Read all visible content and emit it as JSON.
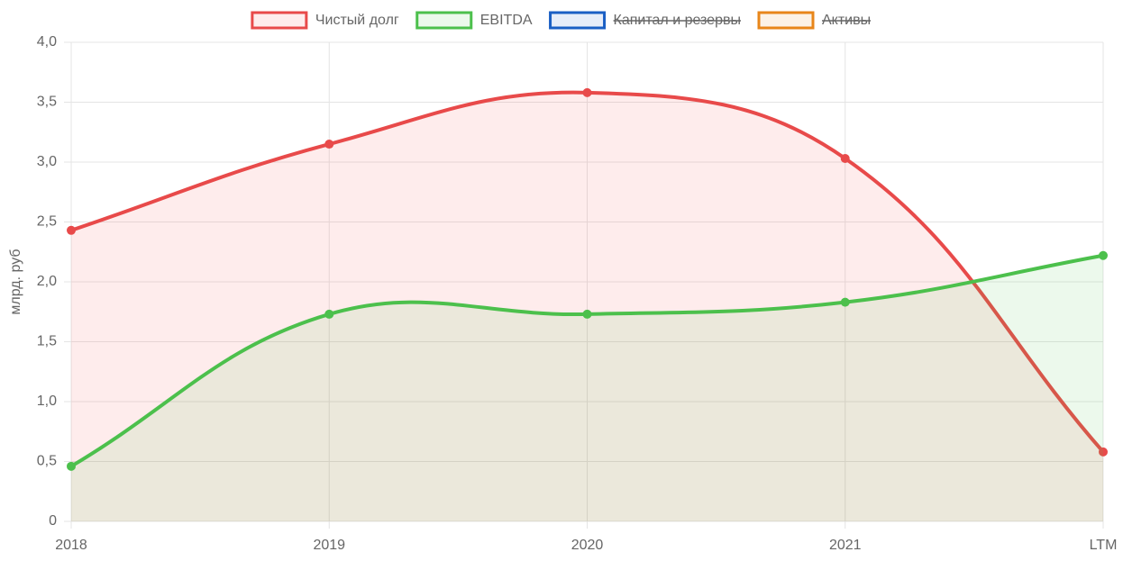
{
  "chart_data": {
    "type": "line",
    "y_label": "млрд. руб",
    "categories": [
      "2018",
      "2019",
      "2020",
      "2021",
      "LTM"
    ],
    "series": [
      {
        "name": "Чистый долг",
        "color": "#e84a4a",
        "fill": "rgba(250,80,80,0.11)",
        "hidden": false,
        "values": [
          2.43,
          3.15,
          3.58,
          3.03,
          0.58
        ]
      },
      {
        "name": "EBITDA",
        "color": "#4cc04c",
        "fill": "rgba(80,200,80,0.11)",
        "hidden": false,
        "values": [
          0.46,
          1.73,
          1.73,
          1.83,
          2.22
        ]
      },
      {
        "name": "Капитал и резервы",
        "color": "#1a5fc4",
        "fill": "rgba(26,95,196,0.11)",
        "hidden": true,
        "values": [
          null,
          null,
          null,
          null,
          null
        ]
      },
      {
        "name": "Активы",
        "color": "#e8861a",
        "fill": "rgba(232,134,26,0.11)",
        "hidden": true,
        "values": [
          null,
          null,
          null,
          null,
          null
        ]
      }
    ],
    "ylim": [
      0,
      4
    ],
    "yticks": [
      0,
      {
        "value": 0.5,
        "label": "0,5"
      },
      {
        "value": 1,
        "label": "1,0"
      },
      {
        "value": 1.5,
        "label": "1,5"
      },
      {
        "value": 2,
        "label": "2,0"
      },
      {
        "value": 2.5,
        "label": "2,5"
      },
      {
        "value": 3,
        "label": "3,0"
      },
      {
        "value": 3.5,
        "label": "3,5"
      },
      {
        "value": 4,
        "label": "4,0"
      }
    ],
    "grid": true
  }
}
